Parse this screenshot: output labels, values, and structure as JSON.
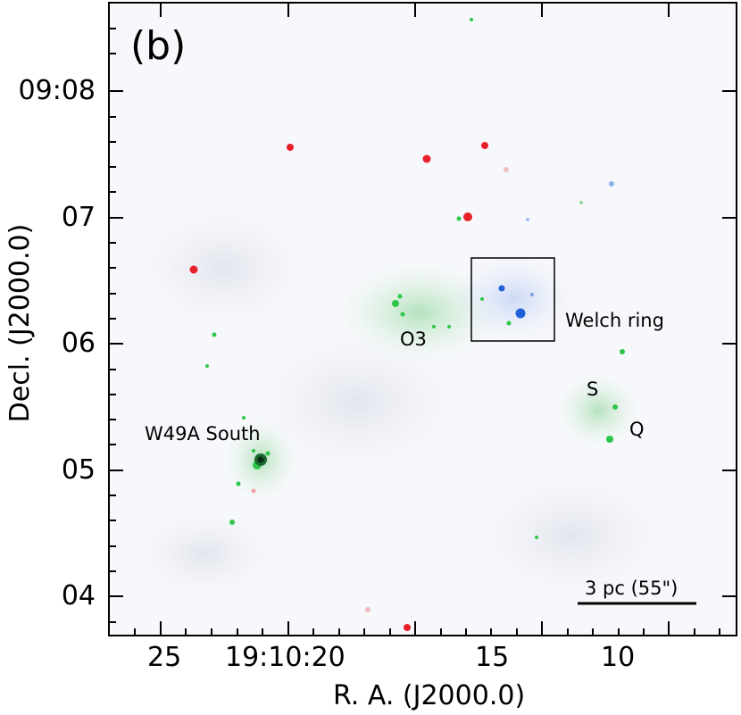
{
  "figure": {
    "panel_label": "(b)",
    "x_axis": {
      "title": "R. A. (J2000.0)",
      "ticks": [
        "25",
        "19:10:20",
        "15",
        "10"
      ]
    },
    "y_axis": {
      "title": "Decl. (J2000.0)",
      "ticks": [
        "09:08",
        "07",
        "06",
        "05",
        "04"
      ]
    },
    "annotations": {
      "welch_ring": "Welch ring",
      "o3": "O3",
      "s": "S",
      "q": "Q",
      "w49a_south": "W49A South"
    },
    "scale_bar": {
      "label": "3 pc (55\")"
    },
    "colors": {
      "background": "#f7f8fb",
      "red_source": "#e8202a",
      "green_source": "#2ec64a",
      "blue_source": "#2060d8",
      "frame": "#000000"
    }
  }
}
